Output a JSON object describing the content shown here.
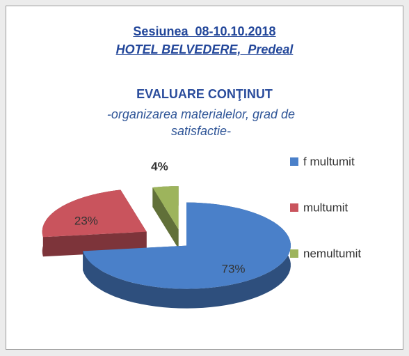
{
  "header": {
    "title": "Sesiunea  08-10.10.2018",
    "subtitle": "HOTEL BELVEDERE,  Predeal"
  },
  "chart_data": {
    "type": "pie",
    "title": "EVALUARE CONŢINUT",
    "subtitle": "-organizarea materialelor, grad de satisfactie-",
    "categories": [
      "f multumit",
      "multumit",
      "nemultumit"
    ],
    "values": [
      73,
      23,
      4
    ],
    "value_labels": [
      "73%",
      "23%",
      "4%"
    ],
    "colors": [
      "#4a80c9",
      "#c9545d",
      "#9db45c"
    ],
    "legend": "right"
  }
}
